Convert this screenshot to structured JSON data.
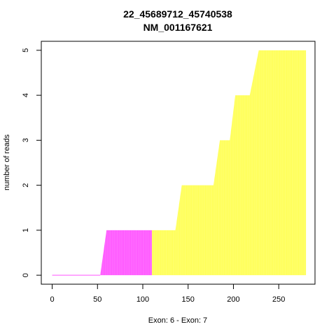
{
  "chart_data": {
    "type": "area",
    "title": "22_45689712_45740538",
    "subtitle": "NM_001167621",
    "xlabel": "Exon: 6 - Exon: 7",
    "ylabel": "number of reads",
    "xlim": [
      -12,
      290
    ],
    "ylim": [
      -0.2,
      5.2
    ],
    "x_ticks": [
      0,
      50,
      100,
      150,
      200,
      250
    ],
    "y_ticks": [
      0,
      1,
      2,
      3,
      4,
      5
    ],
    "grid": false,
    "legend": "none",
    "series": [
      {
        "color": "#ff55ff",
        "x": [
          0,
          53,
          60,
          110
        ],
        "values": [
          0,
          0,
          1,
          1
        ]
      },
      {
        "color": "#ffff55",
        "x": [
          110,
          136,
          143,
          178,
          185,
          196,
          202,
          218,
          228,
          280
        ],
        "values": [
          1,
          1,
          2,
          2,
          3,
          3,
          4,
          4,
          5,
          5
        ]
      }
    ]
  }
}
